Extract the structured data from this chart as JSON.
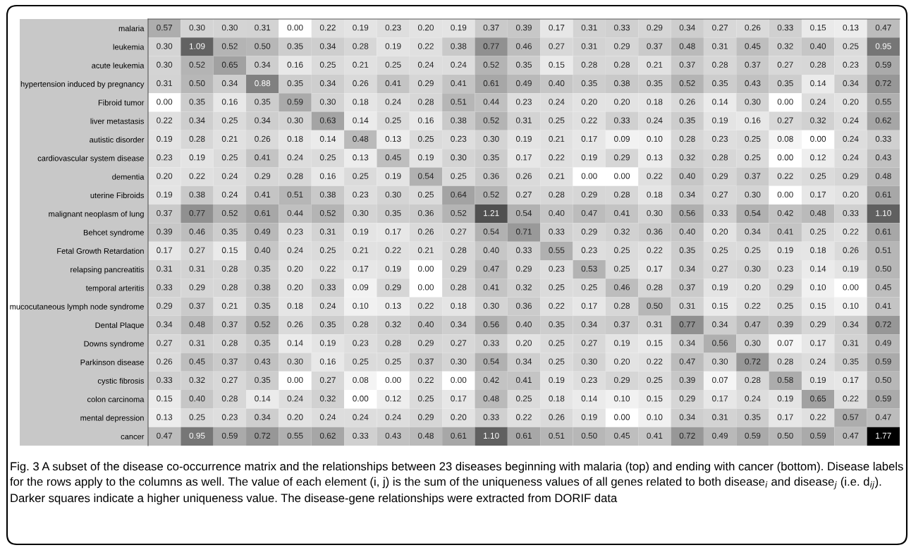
{
  "chart_data": {
    "type": "heatmap",
    "categories": [
      null,
      null,
      null,
      null,
      null,
      null,
      null,
      null,
      null,
      null,
      null,
      null,
      null,
      null,
      null,
      null,
      null,
      null,
      null,
      null,
      null,
      null,
      null
    ],
    "y_categories": [
      "malaria",
      "leukemia",
      "acute leukemia",
      "hypertension induced by pregnancy",
      "Fibroid tumor",
      "liver metastasis",
      "autistic disorder",
      "cardiovascular system disease",
      "dementia",
      "uterine Fibroids",
      "malignant neoplasm of lung",
      "Behcet syndrome",
      "Fetal Growth Retardation",
      "relapsing pancreatitis",
      "temporal arteritis",
      "mucocutaneous lymph node syndrome",
      "Dental Plaque",
      "Downs syndrome",
      "Parkinson disease",
      "cystic fibrosis",
      "colon carcinoma",
      "mental depression",
      "cancer"
    ],
    "cells": [
      [
        0.57,
        0.3,
        0.3,
        0.31,
        0.0,
        0.22,
        0.19,
        0.23,
        0.2,
        0.19,
        0.37,
        0.39,
        0.17,
        0.31,
        0.33,
        0.29,
        0.34,
        0.27,
        0.26,
        0.33,
        0.15,
        0.13,
        0.47
      ],
      [
        0.3,
        1.09,
        0.52,
        0.5,
        0.35,
        0.34,
        0.28,
        0.19,
        0.22,
        0.38,
        0.77,
        0.46,
        0.27,
        0.31,
        0.29,
        0.37,
        0.48,
        0.31,
        0.45,
        0.32,
        0.4,
        0.25,
        0.95
      ],
      [
        0.3,
        0.52,
        0.65,
        0.34,
        0.16,
        0.25,
        0.21,
        0.25,
        0.24,
        0.24,
        0.52,
        0.35,
        0.15,
        0.28,
        0.28,
        0.21,
        0.37,
        0.28,
        0.37,
        0.27,
        0.28,
        0.23,
        0.59
      ],
      [
        0.31,
        0.5,
        0.34,
        0.88,
        0.35,
        0.34,
        0.26,
        0.41,
        0.29,
        0.41,
        0.61,
        0.49,
        0.4,
        0.35,
        0.38,
        0.35,
        0.52,
        0.35,
        0.43,
        0.35,
        0.14,
        0.34,
        0.72
      ],
      [
        0.0,
        0.35,
        0.16,
        0.35,
        0.59,
        0.3,
        0.18,
        0.24,
        0.28,
        0.51,
        0.44,
        0.23,
        0.24,
        0.2,
        0.2,
        0.18,
        0.26,
        0.14,
        0.3,
        0.0,
        0.24,
        0.2,
        0.55
      ],
      [
        0.22,
        0.34,
        0.25,
        0.34,
        0.3,
        0.63,
        0.14,
        0.25,
        0.16,
        0.38,
        0.52,
        0.31,
        0.25,
        0.22,
        0.33,
        0.24,
        0.35,
        0.19,
        0.16,
        0.27,
        0.32,
        0.24,
        0.62
      ],
      [
        0.19,
        0.28,
        0.21,
        0.26,
        0.18,
        0.14,
        0.48,
        0.13,
        0.25,
        0.23,
        0.3,
        0.19,
        0.21,
        0.17,
        0.09,
        0.1,
        0.28,
        0.23,
        0.25,
        0.08,
        0.0,
        0.24,
        0.33
      ],
      [
        0.23,
        0.19,
        0.25,
        0.41,
        0.24,
        0.25,
        0.13,
        0.45,
        0.19,
        0.3,
        0.35,
        0.17,
        0.22,
        0.19,
        0.29,
        0.13,
        0.32,
        0.28,
        0.25,
        0.0,
        0.12,
        0.24,
        0.43
      ],
      [
        0.2,
        0.22,
        0.24,
        0.29,
        0.28,
        0.16,
        0.25,
        0.19,
        0.54,
        0.25,
        0.36,
        0.26,
        0.21,
        0.0,
        0.0,
        0.22,
        0.4,
        0.29,
        0.37,
        0.22,
        0.25,
        0.29,
        0.48
      ],
      [
        0.19,
        0.38,
        0.24,
        0.41,
        0.51,
        0.38,
        0.23,
        0.3,
        0.25,
        0.64,
        0.52,
        0.27,
        0.28,
        0.29,
        0.28,
        0.18,
        0.34,
        0.27,
        0.3,
        0.0,
        0.17,
        0.2,
        0.61
      ],
      [
        0.37,
        0.77,
        0.52,
        0.61,
        0.44,
        0.52,
        0.3,
        0.35,
        0.36,
        0.52,
        1.21,
        0.54,
        0.4,
        0.47,
        0.41,
        0.3,
        0.56,
        0.33,
        0.54,
        0.42,
        0.48,
        0.33,
        1.1
      ],
      [
        0.39,
        0.46,
        0.35,
        0.49,
        0.23,
        0.31,
        0.19,
        0.17,
        0.26,
        0.27,
        0.54,
        0.71,
        0.33,
        0.29,
        0.32,
        0.36,
        0.4,
        0.2,
        0.34,
        0.41,
        0.25,
        0.22,
        0.61
      ],
      [
        0.17,
        0.27,
        0.15,
        0.4,
        0.24,
        0.25,
        0.21,
        0.22,
        0.21,
        0.28,
        0.4,
        0.33,
        0.55,
        0.23,
        0.25,
        0.22,
        0.35,
        0.25,
        0.25,
        0.19,
        0.18,
        0.26,
        0.51
      ],
      [
        0.31,
        0.31,
        0.28,
        0.35,
        0.2,
        0.22,
        0.17,
        0.19,
        0.0,
        0.29,
        0.47,
        0.29,
        0.23,
        0.53,
        0.25,
        0.17,
        0.34,
        0.27,
        0.3,
        0.23,
        0.14,
        0.19,
        0.5
      ],
      [
        0.33,
        0.29,
        0.28,
        0.38,
        0.2,
        0.33,
        0.09,
        0.29,
        0.0,
        0.28,
        0.41,
        0.32,
        0.25,
        0.25,
        0.46,
        0.28,
        0.37,
        0.19,
        0.2,
        0.29,
        0.1,
        0.0,
        0.45
      ],
      [
        0.29,
        0.37,
        0.21,
        0.35,
        0.18,
        0.24,
        0.1,
        0.13,
        0.22,
        0.18,
        0.3,
        0.36,
        0.22,
        0.17,
        0.28,
        0.5,
        0.31,
        0.15,
        0.22,
        0.25,
        0.15,
        0.1,
        0.41
      ],
      [
        0.34,
        0.48,
        0.37,
        0.52,
        0.26,
        0.35,
        0.28,
        0.32,
        0.4,
        0.34,
        0.56,
        0.4,
        0.35,
        0.34,
        0.37,
        0.31,
        0.77,
        0.34,
        0.47,
        0.39,
        0.29,
        0.34,
        0.72
      ],
      [
        0.27,
        0.31,
        0.28,
        0.35,
        0.14,
        0.19,
        0.23,
        0.28,
        0.29,
        0.27,
        0.33,
        0.2,
        0.25,
        0.27,
        0.19,
        0.15,
        0.34,
        0.56,
        0.3,
        0.07,
        0.17,
        0.31,
        0.49
      ],
      [
        0.26,
        0.45,
        0.37,
        0.43,
        0.3,
        0.16,
        0.25,
        0.25,
        0.37,
        0.3,
        0.54,
        0.34,
        0.25,
        0.3,
        0.2,
        0.22,
        0.47,
        0.3,
        0.72,
        0.28,
        0.24,
        0.35,
        0.59
      ],
      [
        0.33,
        0.32,
        0.27,
        0.35,
        0.0,
        0.27,
        0.08,
        0.0,
        0.22,
        0.0,
        0.42,
        0.41,
        0.19,
        0.23,
        0.29,
        0.25,
        0.39,
        0.07,
        0.28,
        0.58,
        0.19,
        0.17,
        0.5
      ],
      [
        0.15,
        0.4,
        0.28,
        0.14,
        0.24,
        0.32,
        0.0,
        0.12,
        0.25,
        0.17,
        0.48,
        0.25,
        0.18,
        0.14,
        0.1,
        0.15,
        0.29,
        0.17,
        0.24,
        0.19,
        0.65,
        0.22,
        0.59
      ],
      [
        0.13,
        0.25,
        0.23,
        0.34,
        0.2,
        0.24,
        0.24,
        0.24,
        0.29,
        0.2,
        0.33,
        0.22,
        0.26,
        0.19,
        0.0,
        0.1,
        0.34,
        0.31,
        0.35,
        0.17,
        0.22,
        0.57,
        0.47
      ],
      [
        0.47,
        0.95,
        0.59,
        0.72,
        0.55,
        0.62,
        0.33,
        0.43,
        0.48,
        0.61,
        1.1,
        0.61,
        0.51,
        0.5,
        0.45,
        0.41,
        0.72,
        0.49,
        0.59,
        0.5,
        0.59,
        0.47,
        1.77
      ]
    ],
    "cell_labels": [
      [
        "0.57",
        "0.30",
        "0.30",
        "0.31",
        "0.00",
        "0.22",
        "0.19",
        "0.23",
        "0.20",
        "0.19",
        "0.37",
        "0.39",
        "0.17",
        "0.31",
        "0.33",
        "0.29",
        "0.34",
        "0.27",
        "0.26",
        "0.33",
        "0.15",
        "0.13",
        "0.47"
      ],
      [
        "0.30",
        "1.09",
        "0.52",
        "0.50",
        "0.35",
        "0.34",
        "0.28",
        "0.19",
        "0.22",
        "0.38",
        "0.77",
        "0.46",
        "0.27",
        "0.31",
        "0.29",
        "0.37",
        "0.48",
        "0.31",
        "0.45",
        "0.32",
        "0.40",
        "0.25",
        "0.95"
      ],
      [
        "0.30",
        "0.52",
        "0.65",
        "0.34",
        "0.16",
        "0.25",
        "0.21",
        "0.25",
        "0.24",
        "0.24",
        "0.52",
        "0.35",
        "0.15",
        "0.28",
        "0.28",
        "0.21",
        "0.37",
        "0.28",
        "0.37",
        "0.27",
        "0.28",
        "0.23",
        "0.59"
      ],
      [
        "0.31",
        "0.50",
        "0.34",
        "0.88",
        "0.35",
        "0.34",
        "0.26",
        "0.41",
        "0.29",
        "0.41",
        "0.61",
        "0.49",
        "0.40",
        "0.35",
        "0.38",
        "0.35",
        "0.52",
        "0.35",
        "0.43",
        "0.35",
        "0.14",
        "0.34",
        "0.72"
      ],
      [
        "0.00",
        "0.35",
        "0.16",
        "0.35",
        "0.59",
        "0.30",
        "0.18",
        "0.24",
        "0.28",
        "0.51",
        "0.44",
        "0.23",
        "0.24",
        "0.20",
        "0.20",
        "0.18",
        "0.26",
        "0.14",
        "0.30",
        "0.00",
        "0.24",
        "0.20",
        "0.55"
      ],
      [
        "0.22",
        "0.34",
        "0.25",
        "0.34",
        "0.30",
        "0.63",
        "0.14",
        "0.25",
        "0.16",
        "0.38",
        "0.52",
        "0.31",
        "0.25",
        "0.22",
        "0.33",
        "0.24",
        "0.35",
        "0.19",
        "0.16",
        "0.27",
        "0.32",
        "0.24",
        "0.62"
      ],
      [
        "0.19",
        "0.28",
        "0.21",
        "0.26",
        "0.18",
        "0.14",
        "0.48",
        "0.13",
        "0.25",
        "0.23",
        "0.30",
        "0.19",
        "0.21",
        "0.17",
        "0.09",
        "0.10",
        "0.28",
        "0.23",
        "0.25",
        "0.08",
        "0.00",
        "0.24",
        "0.33"
      ],
      [
        "0.23",
        "0.19",
        "0.25",
        "0.41",
        "0.24",
        "0.25",
        "0.13",
        "0.45",
        "0.19",
        "0.30",
        "0.35",
        "0.17",
        "0.22",
        "0.19",
        "0.29",
        "0.13",
        "0.32",
        "0.28",
        "0.25",
        "0.00",
        "0.12",
        "0.24",
        "0.43"
      ],
      [
        "0.20",
        "0.22",
        "0.24",
        "0.29",
        "0.28",
        "0.16",
        "0.25",
        "0.19",
        "0.54",
        "0.25",
        "0.36",
        "0.26",
        "0.21",
        "0.00",
        "0.00",
        "0.22",
        "0.40",
        "0.29",
        "0.37",
        "0.22",
        "0.25",
        "0.29",
        "0.48"
      ],
      [
        "0.19",
        "0.38",
        "0.24",
        "0.41",
        "0.51",
        "0.38",
        "0.23",
        "0.30",
        "0.25",
        "0.64",
        "0.52",
        "0.27",
        "0.28",
        "0.29",
        "0.28",
        "0.18",
        "0.34",
        "0.27",
        "0.30",
        "0.00",
        "0.17",
        "0.20",
        "0.61"
      ],
      [
        "0.37",
        "0.77",
        "0.52",
        "0.61",
        "0.44",
        "0.52",
        "0.30",
        "0.35",
        "0.36",
        "0.52",
        "1.21",
        "0.54",
        "0.40",
        "0.47",
        "0.41",
        "0.30",
        "0.56",
        "0.33",
        "0.54",
        "0.42",
        "0.48",
        "0.33",
        "1.10"
      ],
      [
        "0.39",
        "0.46",
        "0.35",
        "0.49",
        "0.23",
        "0.31",
        "0.19",
        "0.17",
        "0.26",
        "0.27",
        "0.54",
        "0.71",
        "0.33",
        "0.29",
        "0.32",
        "0.36",
        "0.40",
        "0.20",
        "0.34",
        "0.41",
        "0.25",
        "0.22",
        "0.61"
      ],
      [
        "0.17",
        "0.27",
        "0.15",
        "0.40",
        "0.24",
        "0.25",
        "0.21",
        "0.22",
        "0.21",
        "0.28",
        "0.40",
        "0.33",
        "0.55",
        "0.23",
        "0.25",
        "0.22",
        "0.35",
        "0.25",
        "0.25",
        "0.19",
        "0.18",
        "0.26",
        "0.51"
      ],
      [
        "0.31",
        "0.31",
        "0.28",
        "0.35",
        "0.20",
        "0.22",
        "0.17",
        "0.19",
        "0.00",
        "0.29",
        "0.47",
        "0.29",
        "0.23",
        "0.53",
        "0.25",
        "0.17",
        "0.34",
        "0.27",
        "0.30",
        "0.23",
        "0.14",
        "0.19",
        "0.50"
      ],
      [
        "0.33",
        "0.29",
        "0.28",
        "0.38",
        "0.20",
        "0.33",
        "0.09",
        "0.29",
        "0.00",
        "0.28",
        "0.41",
        "0.32",
        "0.25",
        "0.25",
        "0.46",
        "0.28",
        "0.37",
        "0.19",
        "0.20",
        "0.29",
        "0.10",
        "0.00",
        "0.45"
      ],
      [
        "0.29",
        "0.37",
        "0.21",
        "0.35",
        "0.18",
        "0.24",
        "0.10",
        "0.13",
        "0.22",
        "0.18",
        "0.30",
        "0.36",
        "0.22",
        "0.17",
        "0.28",
        "0.50",
        "0.31",
        "0.15",
        "0.22",
        "0.25",
        "0.15",
        "0.10",
        "0.41"
      ],
      [
        "0.34",
        "0.48",
        "0.37",
        "0.52",
        "0.26",
        "0.35",
        "0.28",
        "0.32",
        "0.40",
        "0.34",
        "0.56",
        "0.40",
        "0.35",
        "0.34",
        "0.37",
        "0.31",
        "0.77",
        "0.34",
        "0.47",
        "0.39",
        "0.29",
        "0.34",
        "0.72"
      ],
      [
        "0.27",
        "0.31",
        "0.28",
        "0.35",
        "0.14",
        "0.19",
        "0.23",
        "0.28",
        "0.29",
        "0.27",
        "0.33",
        "0.20",
        "0.25",
        "0.27",
        "0.19",
        "0.15",
        "0.34",
        "0.56",
        "0.30",
        "0.07",
        "0.17",
        "0.31",
        "0.49"
      ],
      [
        "0.26",
        "0.45",
        "0.37",
        "0.43",
        "0.30",
        "0.16",
        "0.25",
        "0.25",
        "0.37",
        "0.30",
        "0.54",
        "0.34",
        "0.25",
        "0.30",
        "0.20",
        "0.22",
        "0.47",
        "0.30",
        "0.72",
        "0.28",
        "0.24",
        "0.35",
        "0.59"
      ],
      [
        "0.33",
        "0.32",
        "0.27",
        "0.35",
        "0.00",
        "0.27",
        "0.08",
        "0.00",
        "0.22",
        "0.00",
        "0.42",
        "0.41",
        "0.19",
        "0.23",
        "0.29",
        "0.25",
        "0.39",
        "0.07",
        "0.28",
        "0.58",
        "0.19",
        "0.17",
        "0.50"
      ],
      [
        "0.15",
        "0.40",
        "0.28",
        "0.14",
        "0.24",
        "0.32",
        "0.00",
        "0.12",
        "0.25",
        "0.17",
        "0.48",
        "0.25",
        "0.18",
        "0.14",
        "0.10",
        "0.15",
        "0.29",
        "0.17",
        "0.24",
        "0.19",
        "0.65",
        "0.22",
        "0.59"
      ],
      [
        "0.13",
        "0.25",
        "0.23",
        "0.34",
        "0.20",
        "0.24",
        "0.24",
        "0.24",
        "0.29",
        "0.20",
        "0.33",
        "0.22",
        "0.26",
        "0.19",
        "0.00",
        "0.10",
        "0.34",
        "0.31",
        "0.35",
        "0.17",
        "0.22",
        "0.57",
        "0.47"
      ],
      [
        "0.47",
        "0.95",
        "0.59",
        "0.72",
        "0.55",
        "0.62",
        "0.33",
        "0.43",
        "0.48",
        "0.61",
        "1.10",
        "0.61",
        "0.51",
        "0.50",
        "0.45",
        "0.41",
        "0.72",
        "0.49",
        "0.59",
        "0.50",
        "0.59",
        "0.47",
        "1.77"
      ]
    ],
    "data_labels": true,
    "annotations": [
      "Fig. 3 A subset of the disease co-occurrence matrix and the relationships between 23 diseases beginning with malaria (top) and ending with cancer (bottom). Disease labels for the rows apply to the columns as well. The value of each element (i, j) is the sum of the uniqueness values of all genes related to both disease$_{i}$ and disease$_{j}$ (i.e. d$_{ij}$). Darker squares indicate a higher uniqueness value. The disease-gene relationships were extracted from DORIF data"
    ]
  }
}
